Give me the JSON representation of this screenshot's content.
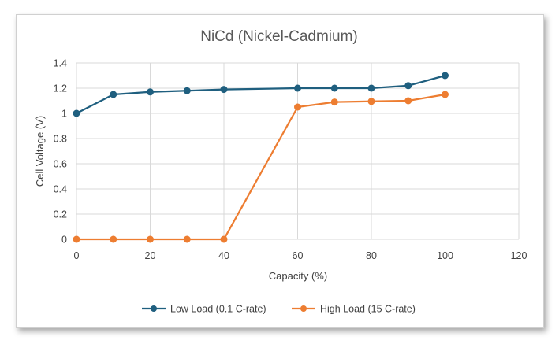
{
  "chart_data": {
    "type": "line",
    "title": "NiCd (Nickel-Cadmium)",
    "xlabel": "Capacity (%)",
    "ylabel": "Cell Voltage (V)",
    "xlim": [
      0,
      120
    ],
    "ylim": [
      0,
      1.4
    ],
    "x_ticks": [
      "0",
      "20",
      "40",
      "60",
      "80",
      "100",
      "120"
    ],
    "y_ticks": [
      "0",
      "0.2",
      "0.4",
      "0.6",
      "0.8",
      "1",
      "1.2",
      "1.4"
    ],
    "grid": true,
    "legend_position": "bottom",
    "series": [
      {
        "name": "Low Load (0.1 C-rate)",
        "color": "#1f5f7f",
        "x": [
          0,
          10,
          20,
          30,
          40,
          60,
          70,
          80,
          90,
          100
        ],
        "y": [
          1.0,
          1.15,
          1.17,
          1.18,
          1.19,
          1.2,
          1.2,
          1.2,
          1.22,
          1.3
        ]
      },
      {
        "name": "High Load (15 C-rate)",
        "color": "#ed7d31",
        "x": [
          0,
          10,
          20,
          30,
          40,
          60,
          70,
          80,
          90,
          100
        ],
        "y": [
          0,
          0,
          0,
          0,
          0,
          1.05,
          1.09,
          1.095,
          1.1,
          1.15
        ]
      }
    ]
  }
}
